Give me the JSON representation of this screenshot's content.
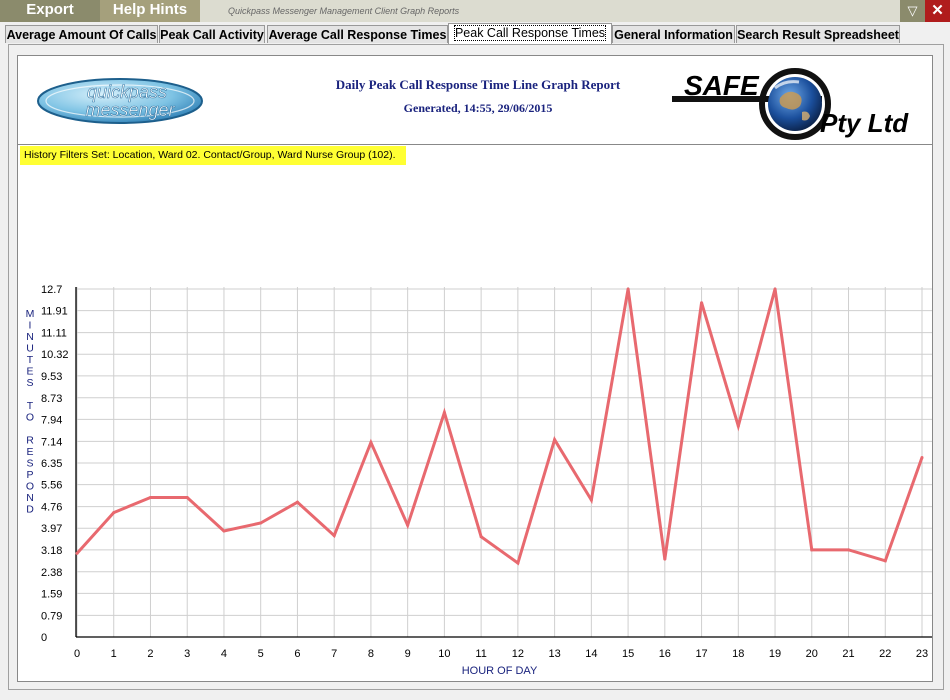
{
  "menu": {
    "export_label": "Export",
    "help_label": "Help Hints"
  },
  "window": {
    "title": "Quickpass Messenger Management Client Graph Reports",
    "minimize_glyph": "▽",
    "close_glyph": "✕"
  },
  "tabs": [
    {
      "label": "Average Amount Of Calls"
    },
    {
      "label": "Peak Call Activity"
    },
    {
      "label": "Average Call Response Times"
    },
    {
      "label": "Peak Call Response Times",
      "active": true
    },
    {
      "label": "General Information"
    },
    {
      "label": "Search Result Spreadsheet"
    }
  ],
  "report": {
    "title": "Daily Peak Call Response Time Line Graph Report",
    "generated": "Generated, 14:55, 29/06/2015",
    "filter": "History Filters Set: Location, Ward 02. Contact/Group, Ward Nurse Group (102).",
    "logo_left": {
      "line1": "quickpass",
      "line2": "messenger",
      "icon": "quickpass-oval-logo"
    },
    "logo_right": {
      "line1": "SAFE",
      "line2": "Pty Ltd",
      "icon": "globe-icon"
    }
  },
  "colors": {
    "line": "#e8696f",
    "grid": "#cfcfcf",
    "axis": "#000000",
    "label": "#1a237e",
    "highlight": "#ffff33"
  },
  "chart_data": {
    "type": "line",
    "xlabel": "HOUR OF DAY",
    "ylabel": "MINUTES TO RESPOND",
    "x": [
      0,
      1,
      2,
      3,
      4,
      5,
      6,
      7,
      8,
      9,
      10,
      11,
      12,
      13,
      14,
      15,
      16,
      17,
      18,
      19,
      20,
      21,
      22,
      23
    ],
    "y_ticks": [
      "0",
      "0.79",
      "1.59",
      "2.38",
      "3.18",
      "3.97",
      "4.76",
      "5.56",
      "6.35",
      "7.14",
      "7.94",
      "8.73",
      "9.53",
      "10.32",
      "11.11",
      "11.91",
      "12.7"
    ],
    "ylim": [
      0,
      12.7
    ],
    "grid": true,
    "series": [
      {
        "values": [
          3.05,
          4.54,
          5.09,
          5.09,
          3.87,
          4.16,
          4.92,
          3.7,
          7.1,
          4.08,
          8.19,
          3.66,
          2.7,
          7.2,
          5.0,
          12.7,
          2.84,
          12.2,
          7.7,
          12.7,
          3.18,
          3.18,
          2.78,
          6.55
        ]
      }
    ]
  }
}
